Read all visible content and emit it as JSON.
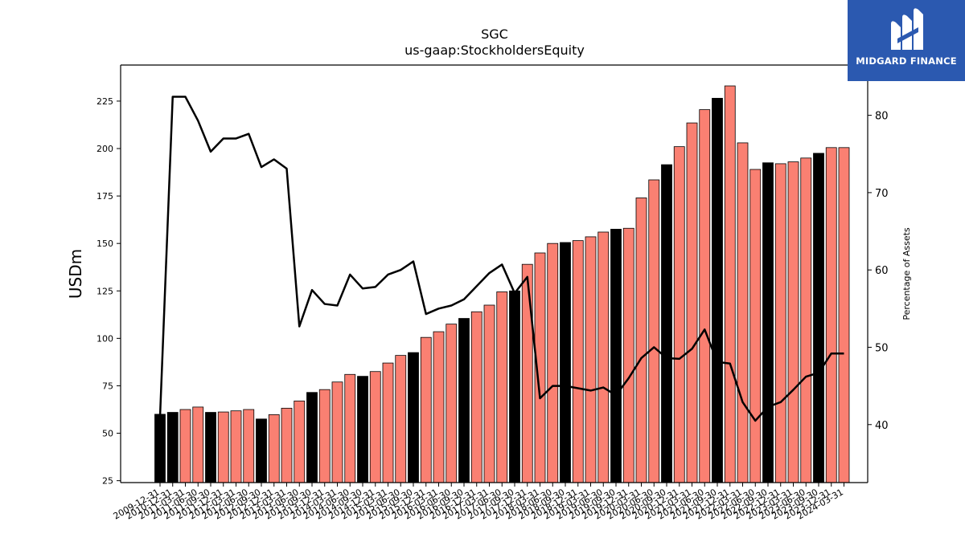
{
  "chart_data": {
    "type": "bar",
    "title": "SGC",
    "subtitle": "us-gaap:StockholdersEquity",
    "ylabel": "USDm",
    "ylabel_right": "Percentage of Assets",
    "ylim": [
      24,
      244
    ],
    "ylim_right": [
      32.5,
      86.5
    ],
    "yticks": [
      25,
      50,
      75,
      100,
      125,
      150,
      175,
      200,
      225
    ],
    "yticks_right": [
      40,
      50,
      60,
      70,
      80
    ],
    "categories": [
      "2009-12-31",
      "2010-12-31",
      "2011-03-31",
      "2011-06-30",
      "2011-09-30",
      "2011-12-31",
      "2012-03-31",
      "2012-06-30",
      "2012-09-30",
      "2012-12-31",
      "2013-03-31",
      "2013-06-30",
      "2013-09-30",
      "2013-12-31",
      "2014-03-31",
      "2014-06-30",
      "2014-09-30",
      "2014-12-31",
      "2015-03-31",
      "2015-06-30",
      "2015-09-30",
      "2015-12-31",
      "2016-03-31",
      "2016-06-30",
      "2016-09-30",
      "2016-12-31",
      "2017-03-31",
      "2017-06-30",
      "2017-09-30",
      "2017-12-31",
      "2018-03-31",
      "2018-06-30",
      "2018-09-30",
      "2018-12-31",
      "2019-03-31",
      "2019-06-30",
      "2019-09-30",
      "2019-12-31",
      "2020-03-31",
      "2020-06-30",
      "2020-09-30",
      "2020-12-31",
      "2021-03-31",
      "2021-06-30",
      "2021-09-30",
      "2021-12-31",
      "2022-03-31",
      "2022-06-30",
      "2022-09-30",
      "2022-12-31",
      "2023-03-31",
      "2023-06-30",
      "2023-09-30",
      "2023-12-31",
      "2024-03-31"
    ],
    "series": [
      {
        "type": "bar",
        "values": [
          60.0,
          61.0,
          62.5,
          63.8,
          61.0,
          61.2,
          61.8,
          62.5,
          57.5,
          59.8,
          63.2,
          67.0,
          71.5,
          73.0,
          77.0,
          81.0,
          80.0,
          82.5,
          87.0,
          91.0,
          92.5,
          100.5,
          103.5,
          107.5,
          110.5,
          114.0,
          117.5,
          124.5,
          125.0,
          139.0,
          145.0,
          150.0,
          150.5,
          151.5,
          153.5,
          156.0,
          157.5,
          158.0,
          174.0,
          183.5,
          191.5,
          201.0,
          213.5,
          220.5,
          226.5,
          233.0,
          203.0,
          189.0,
          192.5,
          192.0,
          193.0,
          195.0,
          197.5,
          200.5,
          200.5
        ],
        "bar_colors": [
          "black",
          "black",
          "salmon",
          "salmon",
          "black",
          "salmon",
          "salmon",
          "salmon",
          "black",
          "salmon",
          "salmon",
          "salmon",
          "black",
          "salmon",
          "salmon",
          "salmon",
          "black",
          "salmon",
          "salmon",
          "salmon",
          "black",
          "salmon",
          "salmon",
          "salmon",
          "black",
          "salmon",
          "salmon",
          "salmon",
          "black",
          "salmon",
          "salmon",
          "salmon",
          "black",
          "salmon",
          "salmon",
          "salmon",
          "black",
          "salmon",
          "salmon",
          "salmon",
          "black",
          "salmon",
          "salmon",
          "salmon",
          "black",
          "salmon",
          "salmon",
          "salmon",
          "black",
          "salmon",
          "salmon",
          "salmon",
          "black",
          "salmon",
          "salmon"
        ]
      },
      {
        "type": "line",
        "axis": "right",
        "values": [
          41.0,
          82.4,
          82.4,
          79.3,
          75.3,
          77.0,
          77.0,
          77.6,
          73.3,
          74.3,
          73.1,
          52.7,
          57.4,
          55.6,
          55.4,
          59.4,
          57.6,
          57.8,
          59.4,
          60.0,
          61.1,
          54.3,
          55.0,
          55.4,
          56.2,
          57.9,
          59.6,
          60.7,
          57.0,
          59.1,
          43.4,
          45.0,
          45.0,
          44.7,
          44.4,
          44.8,
          43.8,
          46.0,
          48.6,
          50.0,
          48.6,
          48.5,
          49.8,
          52.3,
          48.1,
          47.9,
          42.9,
          40.5,
          42.3,
          42.9,
          44.5,
          46.2,
          46.7,
          49.2,
          49.2
        ]
      }
    ],
    "colors": {
      "salmon": "#fa8072",
      "black": "#000000",
      "line": "#000000"
    },
    "grid": false
  },
  "logo": {
    "text": "MIDGARD FINANCE",
    "color": "#2b59b0"
  }
}
